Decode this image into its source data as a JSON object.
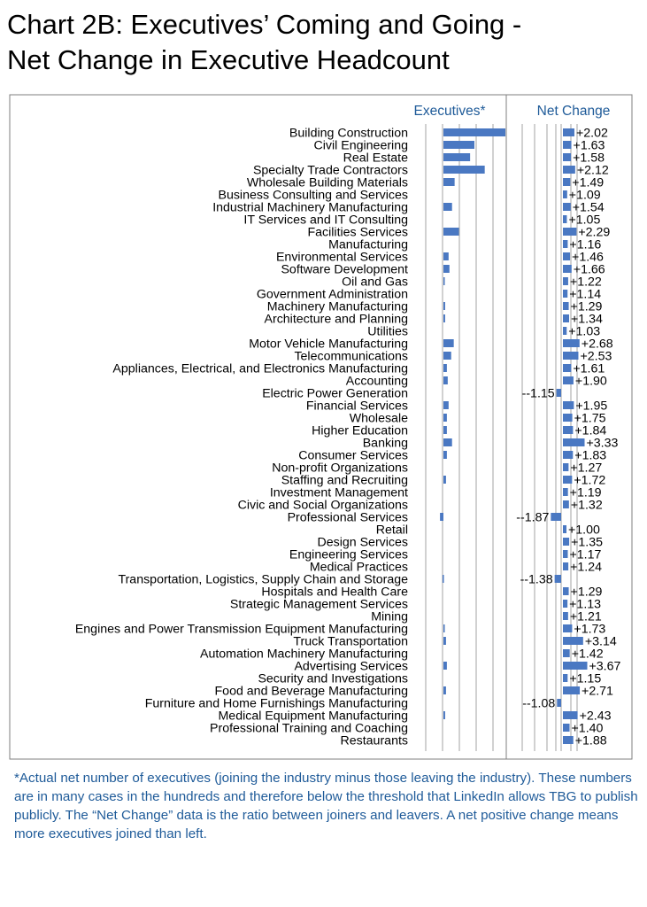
{
  "title_lines": [
    "Chart 2B: Executives’ Coming and Going -",
    " Net Change in Executive Headcount"
  ],
  "footnote": "*Actual net number of  executives (joining the industry minus those leaving the industry).  These numbers are in many cases in the hundreds and therefore below the threshold that LinkedIn allows TBG to publish publicly.  The “Net Change” data is the ratio between joiners and leavers.  A net positive change means more executives joined than left.",
  "colors": {
    "bar": "#4a78c2",
    "header": "#1f5b99",
    "frame": "#7f7f7f",
    "grid": "#8c8c8c"
  },
  "chart_data": {
    "type": "bar",
    "orientation": "horizontal",
    "categories": [
      "Building Construction",
      "Civil Engineering",
      "Real Estate",
      "Specialty Trade Contractors",
      "Wholesale Building Materials",
      "Business Consulting and Services",
      "Industrial Machinery Manufacturing",
      "IT Services and IT Consulting",
      "Facilities Services",
      "Manufacturing",
      "Environmental Services",
      "Software Development",
      "Oil and Gas",
      "Government Administration",
      "Machinery Manufacturing",
      "Architecture and Planning",
      "Utilities",
      "Motor Vehicle Manufacturing",
      "Telecommunications",
      "Appliances, Electrical, and Electronics Manufacturing",
      "Accounting",
      "Electric Power Generation",
      "Financial Services",
      "Wholesale",
      "Higher Education",
      "Banking",
      "Consumer Services",
      "Non-profit Organizations",
      "Staffing and Recruiting",
      "Investment Management",
      "Civic and Social Organizations",
      "Professional Services",
      "Retail",
      "Design Services",
      "Engineering Services",
      "Medical Practices",
      "Transportation, Logistics, Supply Chain and Storage",
      "Hospitals and Health Care",
      "Strategic Management Services",
      "Mining",
      "Engines and Power Transmission Equipment Manufacturing",
      "Truck Transportation",
      "Automation Machinery Manufacturing",
      "Advertising Services",
      "Security and Investigations",
      "Food and Beverage Manufacturing",
      "Furniture and Home Furnishings Manufacturing",
      "Medical Equipment Manufacturing",
      "Professional Training and Coaching",
      "Restaurants"
    ],
    "series": [
      {
        "name": "Executives*",
        "values": [
          72,
          36,
          31,
          48,
          13,
          0,
          10,
          0,
          18,
          0,
          6,
          7,
          1,
          0,
          2,
          2,
          0,
          12,
          9,
          4,
          5,
          0,
          6,
          4,
          4,
          10,
          4,
          0,
          3,
          0,
          0,
          -4,
          0,
          0,
          0,
          0,
          -1,
          0,
          0,
          0,
          1,
          3,
          0,
          4,
          0,
          3,
          0,
          2,
          0,
          0
        ],
        "xlim": [
          -5,
          72
        ]
      },
      {
        "name": "Net Change",
        "values": [
          2.02,
          1.63,
          1.58,
          2.12,
          1.49,
          1.09,
          1.54,
          1.05,
          2.29,
          1.16,
          1.46,
          1.66,
          1.22,
          1.14,
          1.29,
          1.34,
          1.03,
          2.68,
          2.53,
          1.61,
          1.9,
          -1.15,
          1.95,
          1.75,
          1.84,
          3.33,
          1.83,
          1.27,
          1.72,
          1.19,
          1.32,
          -1.87,
          1.0,
          1.35,
          1.17,
          1.24,
          -1.38,
          1.29,
          1.13,
          1.21,
          1.73,
          3.14,
          1.42,
          3.67,
          1.15,
          2.71,
          -1.08,
          2.43,
          1.4,
          1.88
        ],
        "labels": [
          "+2.02",
          "+1.63",
          "+1.58",
          "+2.12",
          "+1.49",
          "+1.09",
          "+1.54",
          "+1.05",
          "+2.29",
          "+1.16",
          "+1.46",
          "+1.66",
          "+1.22",
          "+1.14",
          "+1.29",
          "+1.34",
          "+1.03",
          "+2.68",
          "+2.53",
          "+1.61",
          "+1.90",
          "--1.15",
          "+1.95",
          "+1.75",
          "+1.84",
          "+3.33",
          "+1.83",
          "+1.27",
          "+1.72",
          "+1.19",
          "+1.32",
          "--1.87",
          "+1.00",
          "+1.35",
          "+1.17",
          "+1.24",
          "--1.38",
          "+1.29",
          "+1.13",
          "+1.21",
          "+1.73",
          "+3.14",
          "+1.42",
          "+3.67",
          "+1.15",
          "+2.71",
          "--1.08",
          "+2.43",
          "+1.40",
          "+1.88"
        ]
      }
    ],
    "grid": true,
    "legend": "none"
  }
}
